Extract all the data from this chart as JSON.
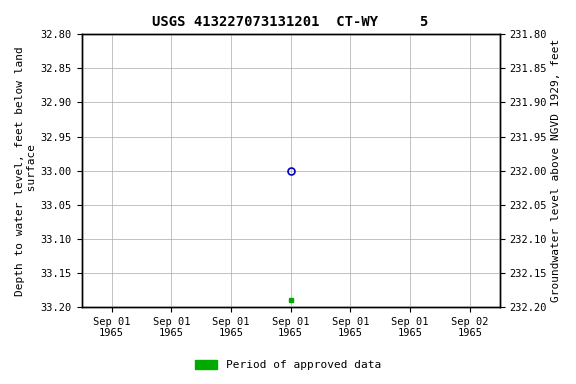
{
  "title": "USGS 413227073131201  CT-WY     5",
  "left_ylabel": "Depth to water level, feet below land\n surface",
  "right_ylabel": "Groundwater level above NGVD 1929, feet",
  "ylim_left": [
    32.8,
    33.2
  ],
  "ylim_right": [
    232.2,
    231.8
  ],
  "left_yticks": [
    32.8,
    32.85,
    32.9,
    32.95,
    33.0,
    33.05,
    33.1,
    33.15,
    33.2
  ],
  "right_yticks": [
    232.2,
    232.15,
    232.1,
    232.05,
    232.0,
    231.95,
    231.9,
    231.85,
    231.8
  ],
  "tick_labels_top": [
    "Sep 01",
    "Sep 01",
    "Sep 01",
    "Sep 01",
    "Sep 01",
    "Sep 01",
    "Sep 02"
  ],
  "tick_labels_bot": [
    "1965",
    "1965",
    "1965",
    "1965",
    "1965",
    "1965",
    "1965"
  ],
  "n_ticks": 7,
  "unapproved_depth": 33.0,
  "approved_depth": 33.19,
  "unapproved_color": "#0000bb",
  "approved_color": "#00aa00",
  "grid_color": "#aaaaaa",
  "bg_color": "#ffffff",
  "legend_label": "Period of approved data",
  "legend_color": "#00aa00",
  "font_size_ticks": 7.5,
  "font_size_title": 10,
  "font_size_label": 8,
  "font_size_legend": 8
}
